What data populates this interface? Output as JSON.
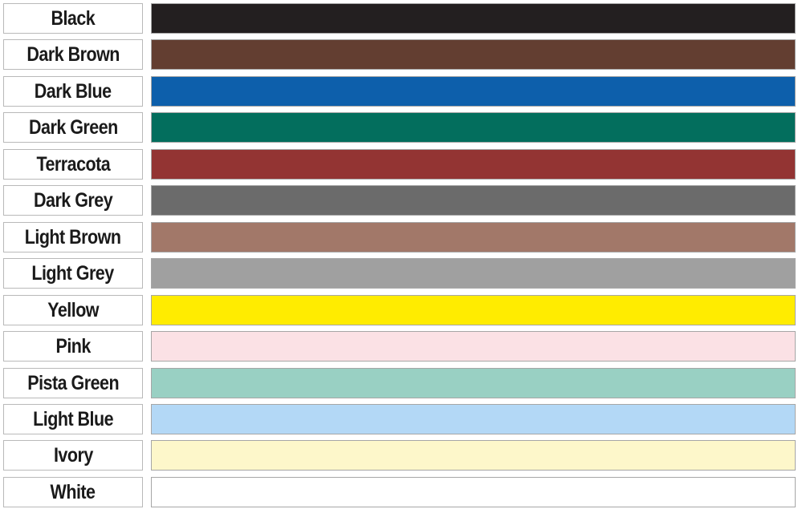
{
  "colors": [
    {
      "label": "Black",
      "swatch": "#231f20"
    },
    {
      "label": "Dark Brown",
      "swatch": "#633e31"
    },
    {
      "label": "Dark Blue",
      "swatch": "#0d5fab"
    },
    {
      "label": "Dark Green",
      "swatch": "#036e5d"
    },
    {
      "label": "Terracota",
      "swatch": "#933433"
    },
    {
      "label": "Dark Grey",
      "swatch": "#6b6b6b"
    },
    {
      "label": "Light Brown",
      "swatch": "#a27869"
    },
    {
      "label": "Light Grey",
      "swatch": "#a0a0a0"
    },
    {
      "label": "Yellow",
      "swatch": "#ffec00"
    },
    {
      "label": "Pink",
      "swatch": "#fbe1e5"
    },
    {
      "label": "Pista Green",
      "swatch": "#99d0c3"
    },
    {
      "label": "Light Blue",
      "swatch": "#b3d8f6"
    },
    {
      "label": "Ivory",
      "swatch": "#fdf7ca"
    },
    {
      "label": "White",
      "swatch": "#ffffff"
    }
  ]
}
